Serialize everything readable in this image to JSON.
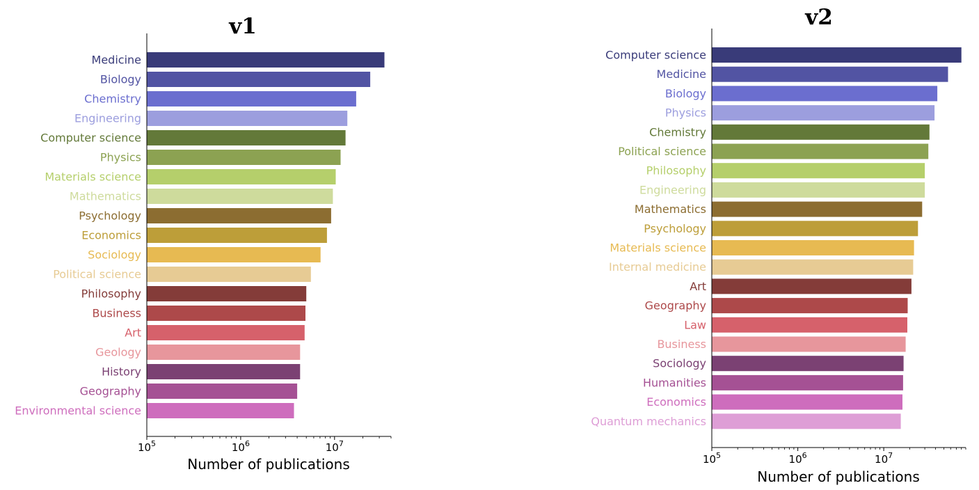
{
  "palette": [
    "#393b79",
    "#5254a3",
    "#6b6ecf",
    "#9c9ede",
    "#637939",
    "#8ca252",
    "#b5cf6b",
    "#cedb9c",
    "#8c6d31",
    "#bd9e39",
    "#e7ba52",
    "#e7cb94",
    "#843c39",
    "#ad494a",
    "#d6616b",
    "#e7969c",
    "#7b4173",
    "#a55194",
    "#ce6dbd",
    "#de9ed6"
  ],
  "chart_data": [
    {
      "type": "bar",
      "orientation": "horizontal",
      "title": "v1",
      "xlabel": "Number of publications",
      "xscale": "log",
      "xlim": [
        100000,
        40000000
      ],
      "xticks": [
        {
          "value": 100000,
          "base": "10",
          "exp": "5"
        },
        {
          "value": 1000000,
          "base": "10",
          "exp": "6"
        },
        {
          "value": 10000000,
          "base": "10",
          "exp": "7"
        }
      ],
      "categories": [
        "Medicine",
        "Biology",
        "Chemistry",
        "Engineering",
        "Computer science",
        "Physics",
        "Materials science",
        "Mathematics",
        "Psychology",
        "Economics",
        "Sociology",
        "Political science",
        "Philosophy",
        "Business",
        "Art",
        "Geology",
        "History",
        "Geography",
        "Environmental science"
      ],
      "values": [
        34000000,
        24000000,
        17000000,
        13700000,
        13100000,
        11600000,
        10300000,
        9600000,
        9200000,
        8300000,
        7100000,
        5600000,
        5000000,
        4900000,
        4800000,
        4300000,
        4300000,
        4000000,
        3700000
      ]
    },
    {
      "type": "bar",
      "orientation": "horizontal",
      "title": "v2",
      "xlabel": "Number of publications",
      "xscale": "log",
      "xlim": [
        100000,
        90000000
      ],
      "xticks": [
        {
          "value": 100000,
          "base": "10",
          "exp": "5"
        },
        {
          "value": 1000000,
          "base": "10",
          "exp": "6"
        },
        {
          "value": 10000000,
          "base": "10",
          "exp": "7"
        }
      ],
      "categories": [
        "Computer science",
        "Medicine",
        "Biology",
        "Physics",
        "Chemistry",
        "Political science",
        "Philosophy",
        "Engineering",
        "Mathematics",
        "Psychology",
        "Materials science",
        "Internal medicine",
        "Art",
        "Geography",
        "Law",
        "Business",
        "Sociology",
        "Humanities",
        "Economics",
        "Quantum mechanics"
      ],
      "values": [
        80000000,
        56000000,
        42000000,
        39000000,
        34000000,
        33000000,
        30000000,
        30000000,
        28000000,
        25000000,
        22500000,
        22000000,
        21000000,
        19000000,
        18800000,
        18000000,
        17000000,
        16800000,
        16500000,
        15800000
      ]
    }
  ]
}
